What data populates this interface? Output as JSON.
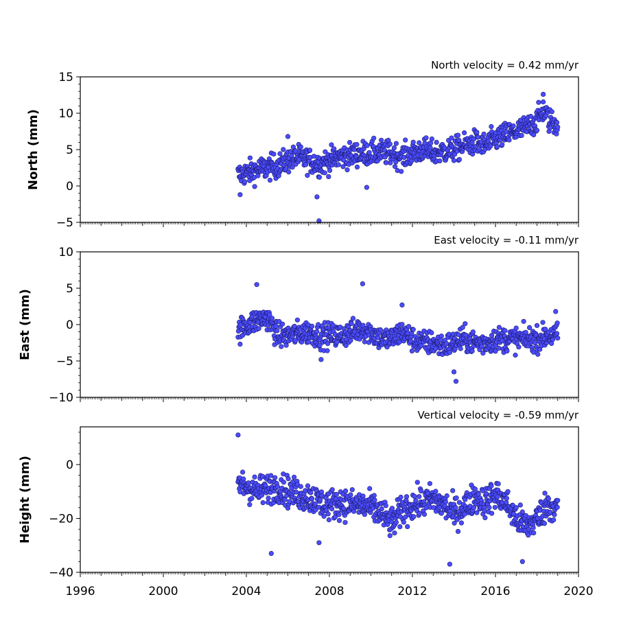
{
  "figure": {
    "marker_fill": "#4b4bff",
    "marker_edge": "#1a1a66",
    "x_ticks": [
      "1996",
      "2000",
      "2004",
      "2008",
      "2012",
      "2016",
      "2020"
    ]
  },
  "chart_data": [
    {
      "type": "scatter",
      "title": "North velocity = 0.42 mm/yr",
      "ylabel": "North (mm)",
      "xlim": [
        1996,
        2020
      ],
      "ylim": [
        -5,
        15
      ],
      "yticks": [
        -5,
        0,
        5,
        10,
        15
      ],
      "y_tick_labels": [
        "−5",
        "0",
        "5",
        "10",
        "15"
      ],
      "grid": false,
      "series": [
        {
          "x": [
            2003.6,
            2004.0,
            2004.5,
            2005.0,
            2005.5,
            2006.0,
            2006.5,
            2007.0,
            2007.5,
            2008.0,
            2008.5,
            2009.0,
            2009.5,
            2010.0,
            2010.5,
            2011.0,
            2011.5,
            2012.0,
            2012.5,
            2013.0,
            2013.5,
            2014.0,
            2014.5,
            2015.0,
            2015.5,
            2016.0,
            2016.5,
            2017.0,
            2017.5,
            2018.0,
            2018.3,
            2018.6,
            2019.0
          ],
          "y": [
            1.5,
            1.8,
            2.2,
            2.5,
            2.8,
            3.5,
            4.0,
            3.5,
            3.0,
            3.5,
            4.0,
            4.2,
            4.5,
            4.5,
            4.6,
            4.5,
            4.0,
            4.5,
            5.0,
            4.5,
            4.8,
            5.0,
            5.5,
            6.0,
            5.5,
            6.5,
            7.0,
            7.5,
            8.0,
            9.0,
            10.5,
            9.0,
            8.5
          ],
          "outliers": [
            [
              2007.4,
              -1.5
            ],
            [
              2007.5,
              -4.8
            ],
            [
              2006.0,
              6.8
            ],
            [
              2018.3,
              12.6
            ],
            [
              2009.8,
              -0.2
            ],
            [
              2003.7,
              -1.2
            ]
          ]
        }
      ]
    },
    {
      "type": "scatter",
      "title": "East velocity = -0.11 mm/yr",
      "ylabel": "East (mm)",
      "xlim": [
        1996,
        2020
      ],
      "ylim": [
        -10,
        10
      ],
      "yticks": [
        -10,
        -5,
        0,
        5,
        10
      ],
      "y_tick_labels": [
        "−10",
        "−5",
        "0",
        "5",
        "10"
      ],
      "grid": false,
      "series": [
        {
          "x": [
            2003.6,
            2004.0,
            2004.5,
            2005.0,
            2005.5,
            2006.0,
            2006.5,
            2007.0,
            2007.5,
            2008.0,
            2008.5,
            2009.0,
            2009.5,
            2010.0,
            2010.5,
            2011.0,
            2011.5,
            2012.0,
            2012.5,
            2013.0,
            2013.5,
            2014.0,
            2014.5,
            2015.0,
            2015.5,
            2016.0,
            2016.5,
            2017.0,
            2017.5,
            2018.0,
            2018.5,
            2019.0
          ],
          "y": [
            -1.0,
            0.0,
            0.5,
            1.0,
            -1.5,
            -1.5,
            -1.2,
            -1.0,
            -1.5,
            -1.5,
            -1.5,
            -1.2,
            -0.5,
            -1.0,
            -2.0,
            -2.0,
            -1.0,
            -2.0,
            -2.5,
            -2.5,
            -3.0,
            -2.5,
            -2.0,
            -2.5,
            -2.5,
            -2.0,
            -2.0,
            -2.0,
            -2.0,
            -2.0,
            -1.5,
            -1.5
          ],
          "outliers": [
            [
              2004.5,
              5.5
            ],
            [
              2009.6,
              5.6
            ],
            [
              2011.5,
              2.7
            ],
            [
              2014.1,
              -7.8
            ],
            [
              2007.6,
              -4.8
            ],
            [
              2014.0,
              -6.5
            ],
            [
              2018.9,
              1.8
            ]
          ]
        }
      ]
    },
    {
      "type": "scatter",
      "title": "Vertical velocity = -0.59 mm/yr",
      "ylabel": "Height (mm)",
      "xlim": [
        1996,
        2020
      ],
      "ylim": [
        -40,
        14
      ],
      "yticks": [
        -40,
        -20,
        0
      ],
      "y_tick_labels": [
        "−40",
        "−20",
        "0"
      ],
      "grid": false,
      "series": [
        {
          "x": [
            2003.6,
            2004.0,
            2004.5,
            2005.0,
            2005.5,
            2006.0,
            2006.5,
            2007.0,
            2007.5,
            2008.0,
            2008.5,
            2009.0,
            2009.5,
            2010.0,
            2010.5,
            2011.0,
            2011.5,
            2012.0,
            2012.5,
            2013.0,
            2013.5,
            2014.0,
            2014.5,
            2015.0,
            2015.5,
            2016.0,
            2016.5,
            2017.0,
            2017.5,
            2018.0,
            2018.5,
            2019.0
          ],
          "y": [
            -7,
            -8,
            -10,
            -9,
            -8,
            -10,
            -11,
            -12,
            -14,
            -15,
            -14,
            -15,
            -15,
            -16,
            -18,
            -22,
            -17,
            -15,
            -14,
            -13,
            -15,
            -18,
            -16,
            -12,
            -14,
            -11,
            -14,
            -20,
            -23,
            -20,
            -15,
            -16
          ],
          "outliers": [
            [
              2003.6,
              11
            ],
            [
              2005.2,
              -33
            ],
            [
              2013.8,
              -37
            ],
            [
              2017.3,
              -36
            ],
            [
              2007.5,
              -29
            ]
          ]
        }
      ]
    }
  ]
}
